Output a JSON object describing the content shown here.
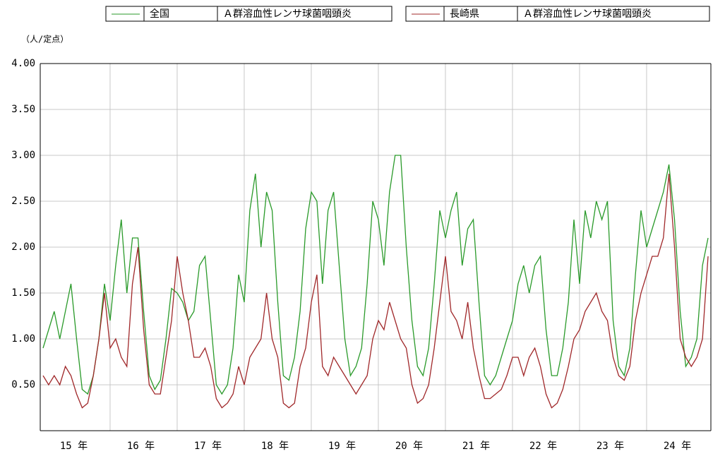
{
  "chart_data": {
    "type": "line",
    "y_label": "（人/定点）",
    "disease": "Ａ群溶血性レンサ球菌咽頭炎",
    "categories": [
      null,
      null,
      null,
      null,
      null,
      null,
      "15 年",
      null,
      null,
      null,
      null,
      null,
      null,
      null,
      null,
      null,
      null,
      null,
      "16 年",
      null,
      null,
      null,
      null,
      null,
      null,
      null,
      null,
      null,
      null,
      null,
      "17 年",
      null,
      null,
      null,
      null,
      null,
      null,
      null,
      null,
      null,
      null,
      null,
      "18 年",
      null,
      null,
      null,
      null,
      null,
      null,
      null,
      null,
      null,
      null,
      null,
      "19 年",
      null,
      null,
      null,
      null,
      null,
      null,
      null,
      null,
      null,
      null,
      null,
      "20 年",
      null,
      null,
      null,
      null,
      null,
      null,
      null,
      null,
      null,
      null,
      null,
      "21 年",
      null,
      null,
      null,
      null,
      null,
      null,
      null,
      null,
      null,
      null,
      null,
      "22 年",
      null,
      null,
      null,
      null,
      null,
      null,
      null,
      null,
      null,
      null,
      null,
      "23 年",
      null,
      null,
      null,
      null,
      null,
      null,
      null,
      null,
      null,
      null,
      null,
      "24 年",
      null,
      null,
      null,
      null,
      null
    ],
    "series": [
      {
        "name": "全国",
        "color": "#2a9a2a",
        "values": [
          0.9,
          1.1,
          1.3,
          1.0,
          1.3,
          1.6,
          1.0,
          0.45,
          0.4,
          0.6,
          1.0,
          1.6,
          1.2,
          1.8,
          2.3,
          1.5,
          2.1,
          2.1,
          1.3,
          0.6,
          0.45,
          0.55,
          1.0,
          1.55,
          1.5,
          1.4,
          1.2,
          1.3,
          1.8,
          1.9,
          1.2,
          0.5,
          0.4,
          0.5,
          0.9,
          1.7,
          1.4,
          2.4,
          2.8,
          2.0,
          2.6,
          2.4,
          1.4,
          0.6,
          0.55,
          0.8,
          1.3,
          2.2,
          2.6,
          2.5,
          1.6,
          2.4,
          2.6,
          1.8,
          1.0,
          0.6,
          0.7,
          0.9,
          1.6,
          2.5,
          2.3,
          1.8,
          2.6,
          3.0,
          3.0,
          2.0,
          1.2,
          0.7,
          0.6,
          0.9,
          1.6,
          2.4,
          2.1,
          2.4,
          2.6,
          1.8,
          2.2,
          2.3,
          1.4,
          0.6,
          0.5,
          0.6,
          0.8,
          1.0,
          1.2,
          1.6,
          1.8,
          1.5,
          1.8,
          1.9,
          1.1,
          0.6,
          0.6,
          0.9,
          1.4,
          2.3,
          1.6,
          2.4,
          2.1,
          2.5,
          2.3,
          2.5,
          1.2,
          0.7,
          0.6,
          0.9,
          1.7,
          2.4,
          2.0,
          2.2,
          2.4,
          2.6,
          2.9,
          2.3,
          1.3,
          0.7,
          0.8,
          1.0,
          1.8,
          2.1
        ]
      },
      {
        "name": "長崎県",
        "color": "#a0282a",
        "values": [
          0.6,
          0.5,
          0.6,
          0.5,
          0.7,
          0.6,
          0.4,
          0.25,
          0.3,
          0.6,
          1.0,
          1.5,
          0.9,
          1.0,
          0.8,
          0.7,
          1.6,
          2.0,
          1.1,
          0.5,
          0.4,
          0.4,
          0.8,
          1.2,
          1.9,
          1.5,
          1.2,
          0.8,
          0.8,
          0.9,
          0.7,
          0.35,
          0.25,
          0.3,
          0.4,
          0.7,
          0.5,
          0.8,
          0.9,
          1.0,
          1.5,
          1.0,
          0.8,
          0.3,
          0.25,
          0.3,
          0.7,
          0.9,
          1.4,
          1.7,
          0.7,
          0.6,
          0.8,
          0.7,
          0.6,
          0.5,
          0.4,
          0.5,
          0.6,
          1.0,
          1.2,
          1.1,
          1.4,
          1.2,
          1.0,
          0.9,
          0.5,
          0.3,
          0.35,
          0.5,
          0.9,
          1.4,
          1.9,
          1.3,
          1.2,
          1.0,
          1.4,
          0.9,
          0.6,
          0.35,
          0.35,
          0.4,
          0.45,
          0.6,
          0.8,
          0.8,
          0.6,
          0.8,
          0.9,
          0.7,
          0.4,
          0.25,
          0.3,
          0.45,
          0.7,
          1.0,
          1.1,
          1.3,
          1.4,
          1.5,
          1.3,
          1.2,
          0.8,
          0.6,
          0.55,
          0.7,
          1.2,
          1.5,
          1.7,
          1.9,
          1.9,
          2.1,
          2.8,
          2.0,
          1.0,
          0.8,
          0.7,
          0.8,
          1.0,
          1.9
        ]
      }
    ],
    "ylim": [
      0,
      4
    ],
    "yticks": [
      {
        "value": 0.5,
        "label": "0.50"
      },
      {
        "value": 1,
        "label": "1.00"
      },
      {
        "value": 1.5,
        "label": "1.50"
      },
      {
        "value": 2,
        "label": "2.00"
      },
      {
        "value": 2.5,
        "label": "2.50"
      },
      {
        "value": 3,
        "label": "3.00"
      },
      {
        "value": 3.5,
        "label": "3.50"
      },
      {
        "value": 4,
        "label": "4.00"
      }
    ],
    "grid": true
  }
}
